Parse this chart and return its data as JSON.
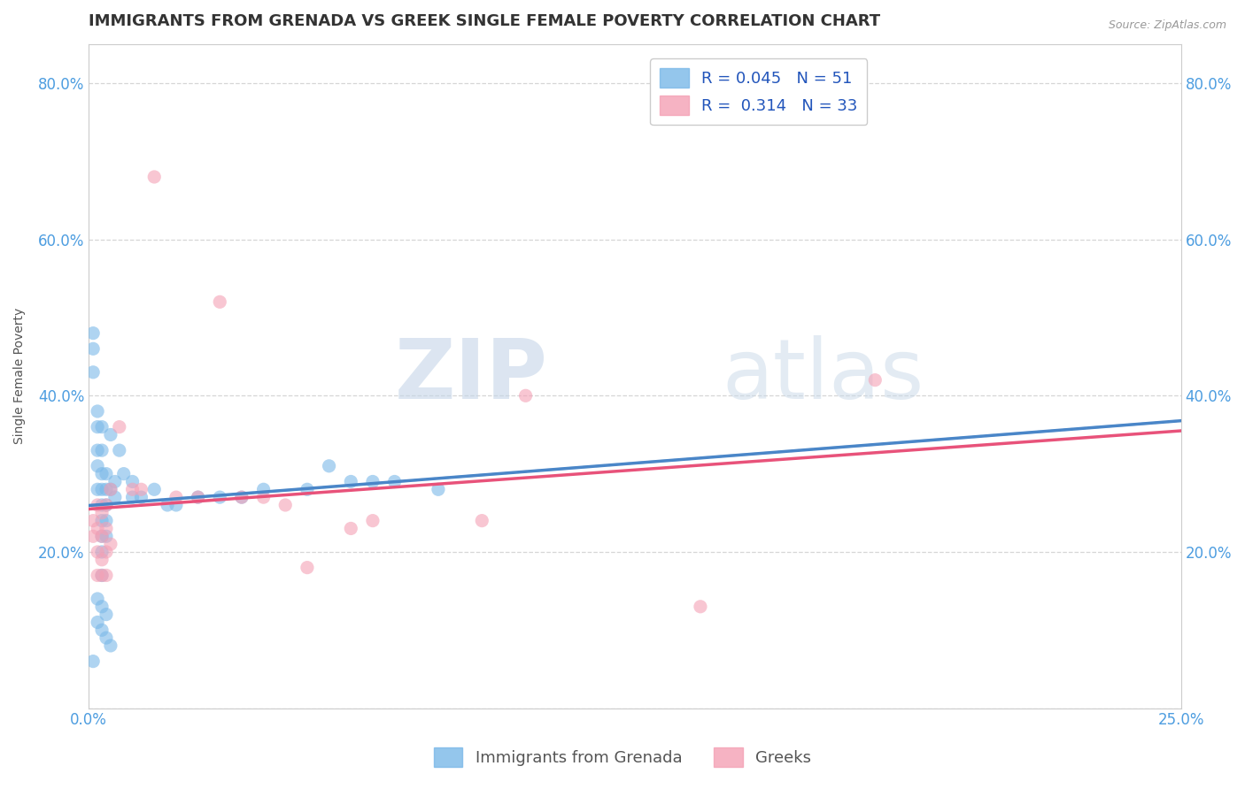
{
  "title": "IMMIGRANTS FROM GRENADA VS GREEK SINGLE FEMALE POVERTY CORRELATION CHART",
  "source": "Source: ZipAtlas.com",
  "ylabel_label": "Single Female Poverty",
  "x_min": 0.0,
  "x_max": 0.25,
  "y_min": 0.0,
  "y_max": 0.85,
  "x_ticks": [
    0.0,
    0.05,
    0.1,
    0.15,
    0.2,
    0.25
  ],
  "y_ticks": [
    0.0,
    0.2,
    0.4,
    0.6,
    0.8
  ],
  "legend_label1": "Immigrants from Grenada",
  "legend_label2": "Greeks",
  "blue_color": "#7ab8e8",
  "blue_line_color": "#4a86c8",
  "pink_color": "#f4a0b5",
  "pink_line_color": "#e8527a",
  "blue_dashed_color": "#a8cce8",
  "blue_scatter": [
    [
      0.001,
      0.46
    ],
    [
      0.001,
      0.48
    ],
    [
      0.001,
      0.43
    ],
    [
      0.002,
      0.38
    ],
    [
      0.002,
      0.36
    ],
    [
      0.002,
      0.33
    ],
    [
      0.002,
      0.31
    ],
    [
      0.002,
      0.28
    ],
    [
      0.003,
      0.36
    ],
    [
      0.003,
      0.33
    ],
    [
      0.003,
      0.3
    ],
    [
      0.003,
      0.28
    ],
    [
      0.003,
      0.26
    ],
    [
      0.003,
      0.24
    ],
    [
      0.003,
      0.22
    ],
    [
      0.003,
      0.2
    ],
    [
      0.003,
      0.17
    ],
    [
      0.004,
      0.3
    ],
    [
      0.004,
      0.28
    ],
    [
      0.004,
      0.26
    ],
    [
      0.004,
      0.24
    ],
    [
      0.004,
      0.22
    ],
    [
      0.005,
      0.35
    ],
    [
      0.005,
      0.28
    ],
    [
      0.006,
      0.29
    ],
    [
      0.006,
      0.27
    ],
    [
      0.007,
      0.33
    ],
    [
      0.008,
      0.3
    ],
    [
      0.01,
      0.29
    ],
    [
      0.01,
      0.27
    ],
    [
      0.012,
      0.27
    ],
    [
      0.015,
      0.28
    ],
    [
      0.018,
      0.26
    ],
    [
      0.02,
      0.26
    ],
    [
      0.025,
      0.27
    ],
    [
      0.03,
      0.27
    ],
    [
      0.035,
      0.27
    ],
    [
      0.04,
      0.28
    ],
    [
      0.05,
      0.28
    ],
    [
      0.055,
      0.31
    ],
    [
      0.06,
      0.29
    ],
    [
      0.065,
      0.29
    ],
    [
      0.07,
      0.29
    ],
    [
      0.08,
      0.28
    ],
    [
      0.002,
      0.14
    ],
    [
      0.002,
      0.11
    ],
    [
      0.003,
      0.13
    ],
    [
      0.003,
      0.1
    ],
    [
      0.004,
      0.12
    ],
    [
      0.004,
      0.09
    ],
    [
      0.005,
      0.08
    ],
    [
      0.001,
      0.06
    ]
  ],
  "pink_scatter": [
    [
      0.001,
      0.24
    ],
    [
      0.001,
      0.22
    ],
    [
      0.002,
      0.26
    ],
    [
      0.002,
      0.23
    ],
    [
      0.002,
      0.2
    ],
    [
      0.002,
      0.17
    ],
    [
      0.003,
      0.25
    ],
    [
      0.003,
      0.22
    ],
    [
      0.003,
      0.19
    ],
    [
      0.003,
      0.17
    ],
    [
      0.004,
      0.26
    ],
    [
      0.004,
      0.23
    ],
    [
      0.004,
      0.2
    ],
    [
      0.004,
      0.17
    ],
    [
      0.005,
      0.28
    ],
    [
      0.005,
      0.21
    ],
    [
      0.007,
      0.36
    ],
    [
      0.01,
      0.28
    ],
    [
      0.012,
      0.28
    ],
    [
      0.015,
      0.68
    ],
    [
      0.02,
      0.27
    ],
    [
      0.025,
      0.27
    ],
    [
      0.03,
      0.52
    ],
    [
      0.035,
      0.27
    ],
    [
      0.04,
      0.27
    ],
    [
      0.045,
      0.26
    ],
    [
      0.05,
      0.18
    ],
    [
      0.06,
      0.23
    ],
    [
      0.065,
      0.24
    ],
    [
      0.09,
      0.24
    ],
    [
      0.1,
      0.4
    ],
    [
      0.14,
      0.13
    ],
    [
      0.18,
      0.42
    ]
  ],
  "watermark_zip": "ZIP",
  "watermark_atlas": "atlas",
  "background_color": "#ffffff",
  "grid_color": "#cccccc",
  "title_color": "#333333",
  "axis_label_color": "#555555",
  "tick_label_color": "#4d9de0",
  "title_fontsize": 13,
  "legend_fontsize": 13,
  "axis_label_fontsize": 10,
  "tick_fontsize": 12
}
